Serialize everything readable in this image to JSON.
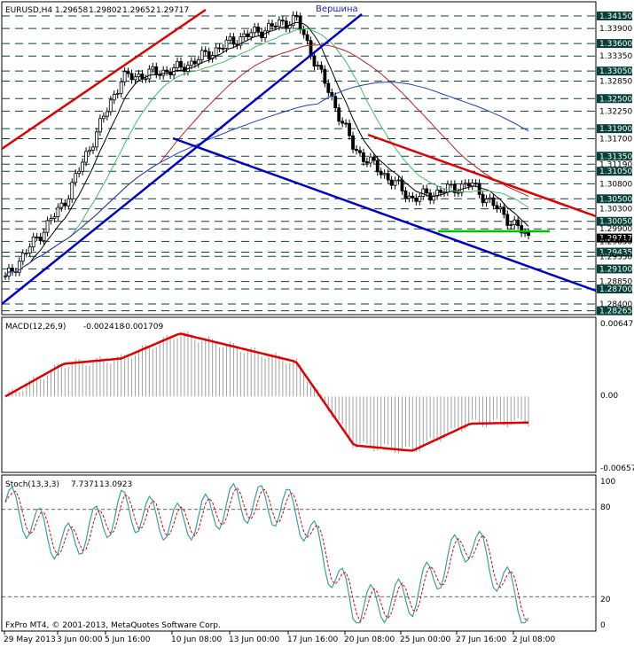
{
  "header": {
    "symbol": "EURUSD,H4",
    "ohlc": [
      "1.29658",
      "1.29802",
      "1.29652",
      "1.29717"
    ]
  },
  "annotation": "Вершина",
  "price_levels": [
    "1.34150",
    "1.33900",
    "1.33600",
    "1.33350",
    "1.33050",
    "1.32850",
    "1.32500",
    "1.32250",
    "1.31900",
    "1.31700",
    "1.31350",
    "1.31190",
    "1.31050",
    "1.30800",
    "1.30500",
    "1.30300",
    "1.30050",
    "1.29900",
    "1.29717",
    "1.29650",
    "1.29435",
    "1.29350",
    "1.29100",
    "1.28850",
    "1.28700",
    "1.28400",
    "1.28265"
  ],
  "macd": {
    "label": "MACD(12,26,9)",
    "main": "-0.002418",
    "signal": "-0.001709",
    "scale": [
      "0.00647",
      "0.00",
      "-0.006579"
    ]
  },
  "stoch": {
    "label": "Stoch(13,3,3)",
    "k": "7.7371",
    "d": "13.0923",
    "scale": [
      "100",
      "80",
      "20",
      "0"
    ]
  },
  "copyright": "FxPro MT4, © 2001-2013, MetaQuotes Software Corp.",
  "time_labels": [
    "29 May 2013",
    "3 Jun 00:00",
    "5 Jun 16:00",
    "10 Jun 08:00",
    "13 Jun 00:00",
    "17 Jun 16:00",
    "20 Jun 08:00",
    "25 Jun 00:00",
    "27 Jun 16:00",
    "2 Jul 08:00"
  ],
  "colors": {
    "trend_red": "#e00000",
    "trend_blue": "#0000cc",
    "support_green": "#00c000",
    "macd_line": "#e00000",
    "stoch_k": "#3aa0a0",
    "stoch_d": "#e00000",
    "grid": "#08403a"
  },
  "chart_data": {
    "type": "candlestick",
    "symbol": "EURUSD",
    "timeframe": "H4",
    "x": [
      "29 May 2013",
      "3 Jun",
      "5 Jun",
      "10 Jun",
      "13 Jun",
      "17 Jun",
      "20 Jun",
      "25 Jun",
      "27 Jun",
      "2 Jul"
    ],
    "close": [
      1.289,
      1.304,
      1.329,
      1.331,
      1.337,
      1.341,
      1.315,
      1.305,
      1.308,
      1.2972
    ],
    "ylim": [
      1.28265,
      1.3415
    ],
    "series": [
      {
        "name": "MACD(12,26,9)",
        "values": [
          0.0,
          0.003,
          0.0035,
          0.0058,
          0.0045,
          0.0032,
          -0.0045,
          -0.005,
          -0.0025,
          -0.0024
        ]
      },
      {
        "name": "Stoch(13,3,3)",
        "values": [
          85,
          55,
          80,
          70,
          85,
          80,
          12,
          20,
          60,
          8
        ]
      }
    ]
  }
}
